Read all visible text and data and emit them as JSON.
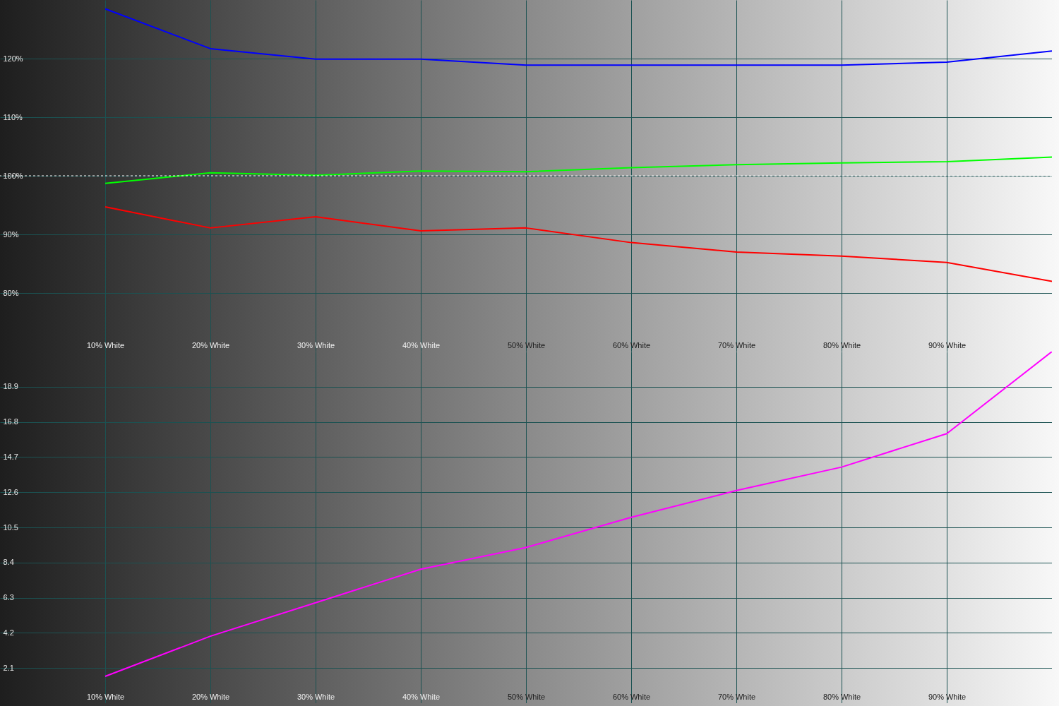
{
  "chart_data": [
    {
      "type": "line",
      "x": [
        10,
        20,
        30,
        40,
        50,
        60,
        70,
        80,
        90,
        100
      ],
      "xlim": [
        0,
        100
      ],
      "xticks": [
        {
          "value": 10,
          "label": "10% White"
        },
        {
          "value": 20,
          "label": "20% White"
        },
        {
          "value": 30,
          "label": "30% White"
        },
        {
          "value": 40,
          "label": "40% White"
        },
        {
          "value": 50,
          "label": "50% White"
        },
        {
          "value": 60,
          "label": "60% White"
        },
        {
          "value": 70,
          "label": "70% White"
        },
        {
          "value": 80,
          "label": "80% White"
        },
        {
          "value": 90,
          "label": "90% White"
        }
      ],
      "ylim": [
        70,
        130
      ],
      "yticks": [
        {
          "value": 80,
          "label": "80%"
        },
        {
          "value": 90,
          "label": "90%"
        },
        {
          "value": 100,
          "label": "100%"
        },
        {
          "value": 110,
          "label": "110%"
        },
        {
          "value": 120,
          "label": "120%"
        }
      ],
      "grid": true,
      "series": [
        {
          "color": "#0000ff",
          "values": [
            128.5,
            121.7,
            119.9,
            119.9,
            118.9,
            118.9,
            118.9,
            118.9,
            119.4,
            121.3
          ]
        },
        {
          "color": "#00ff00",
          "values": [
            98.7,
            100.5,
            100.1,
            100.8,
            100.7,
            101.4,
            101.9,
            102.2,
            102.4,
            103.2
          ]
        },
        {
          "color": "#ff0000",
          "values": [
            94.7,
            91.1,
            93.0,
            90.6,
            91.1,
            88.6,
            87.0,
            86.3,
            85.2,
            82.0
          ]
        }
      ],
      "ref_lines": [
        {
          "axis": "y",
          "value": 100,
          "color": "#ffffff",
          "line_style": "dashed"
        }
      ]
    },
    {
      "type": "line",
      "x": [
        10,
        20,
        30,
        40,
        50,
        60,
        70,
        80,
        90,
        100
      ],
      "xlim": [
        0,
        100
      ],
      "xticks": [
        {
          "value": 10,
          "label": "10% White"
        },
        {
          "value": 20,
          "label": "20% White"
        },
        {
          "value": 30,
          "label": "30% White"
        },
        {
          "value": 40,
          "label": "40% White"
        },
        {
          "value": 50,
          "label": "50% White"
        },
        {
          "value": 60,
          "label": "60% White"
        },
        {
          "value": 70,
          "label": "70% White"
        },
        {
          "value": 80,
          "label": "80% White"
        },
        {
          "value": 90,
          "label": "90% White"
        }
      ],
      "ylim": [
        0,
        21
      ],
      "yticks": [
        {
          "value": 2.1,
          "label": "2.1"
        },
        {
          "value": 4.2,
          "label": "4.2"
        },
        {
          "value": 6.3,
          "label": "6.3"
        },
        {
          "value": 8.4,
          "label": "8.4"
        },
        {
          "value": 10.5,
          "label": "10.5"
        },
        {
          "value": 12.6,
          "label": "12.6"
        },
        {
          "value": 14.7,
          "label": "14.7"
        },
        {
          "value": 16.8,
          "label": "16.8"
        },
        {
          "value": 18.9,
          "label": "18.9"
        }
      ],
      "grid": true,
      "series": [
        {
          "color": "#ff00ff",
          "values": [
            1.6,
            4.0,
            6.0,
            8.0,
            9.3,
            11.1,
            12.7,
            14.1,
            16.1,
            21.0
          ]
        }
      ]
    }
  ]
}
